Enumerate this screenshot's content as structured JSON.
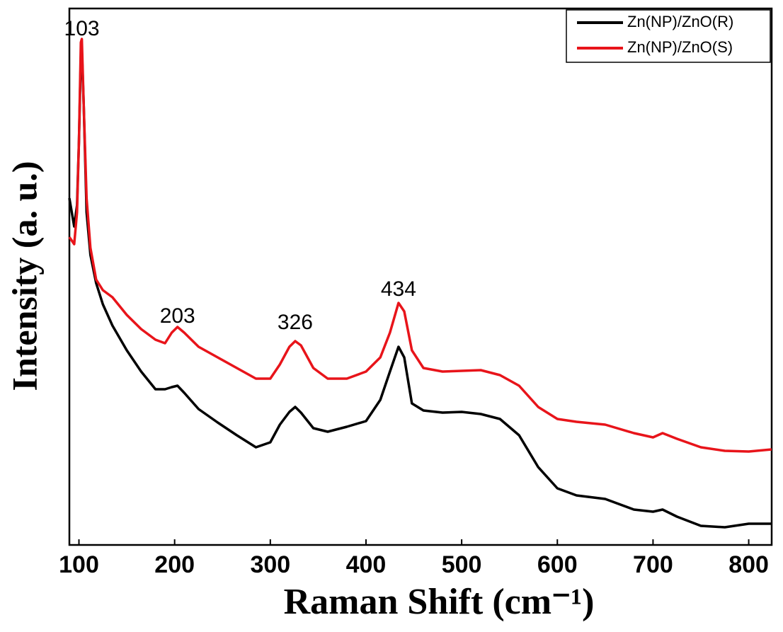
{
  "chart_data": {
    "type": "line",
    "xlabel": "Raman Shift (cm⁻¹)",
    "ylabel": "Intensity (a. u.)",
    "x": [
      90,
      95,
      98,
      100,
      102,
      103,
      105,
      108,
      112,
      118,
      125,
      135,
      150,
      165,
      180,
      190,
      197,
      203,
      210,
      225,
      245,
      265,
      285,
      300,
      310,
      320,
      326,
      332,
      345,
      360,
      380,
      400,
      415,
      425,
      434,
      440,
      448,
      460,
      480,
      500,
      520,
      540,
      560,
      580,
      600,
      620,
      650,
      680,
      700,
      710,
      725,
      750,
      775,
      800,
      824
    ],
    "series": [
      {
        "name": "Zn(NP)/ZnO(R)",
        "color": "#000000",
        "values": [
          490,
          450,
          480,
          570,
          690,
          700,
          620,
          470,
          410,
          370,
          340,
          310,
          275,
          245,
          220,
          220,
          223,
          225,
          215,
          192,
          173,
          155,
          138,
          145,
          170,
          188,
          195,
          187,
          165,
          160,
          167,
          175,
          205,
          245,
          280,
          265,
          200,
          190,
          187,
          188,
          185,
          178,
          155,
          110,
          80,
          70,
          65,
          50,
          47,
          50,
          40,
          27,
          25,
          30,
          30
        ]
      },
      {
        "name": "Zn(NP)/ZnO(S)",
        "color": "#e8141a",
        "values": [
          435,
          425,
          470,
          570,
          710,
          715,
          620,
          490,
          420,
          375,
          360,
          350,
          325,
          305,
          290,
          285,
          300,
          308,
          300,
          280,
          265,
          250,
          235,
          235,
          255,
          280,
          288,
          282,
          250,
          235,
          235,
          245,
          265,
          300,
          342,
          330,
          275,
          250,
          245,
          246,
          247,
          240,
          225,
          195,
          178,
          174,
          170,
          158,
          152,
          158,
          150,
          138,
          133,
          132,
          135
        ]
      }
    ],
    "annotations": [
      {
        "text": "103",
        "x": 103,
        "y": 728
      },
      {
        "text": "203",
        "x": 203,
        "y": 322
      },
      {
        "text": "326",
        "x": 326,
        "y": 313
      },
      {
        "text": "434",
        "x": 434,
        "y": 360
      }
    ],
    "xlim": [
      90,
      824
    ],
    "xticks": [
      100,
      200,
      300,
      400,
      500,
      600,
      700,
      800
    ],
    "ylim": [
      0,
      758
    ],
    "legend": "upper right"
  }
}
